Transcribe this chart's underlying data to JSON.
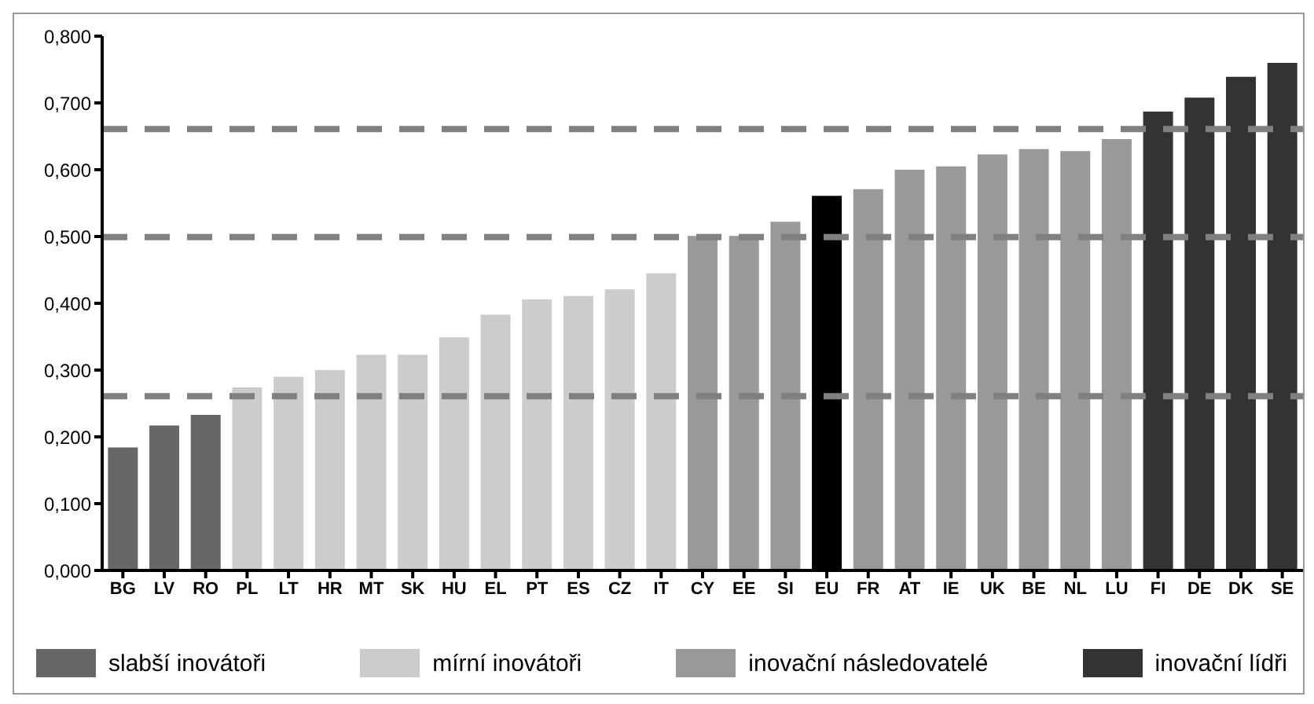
{
  "chart_data": {
    "type": "bar",
    "stacked": true,
    "categories": [
      "BG",
      "LV",
      "RO",
      "PL",
      "LT",
      "HR",
      "MT",
      "SK",
      "HU",
      "EL",
      "PT",
      "ES",
      "CZ",
      "IT",
      "CY",
      "EE",
      "SI",
      "EU",
      "FR",
      "AT",
      "IE",
      "UK",
      "BE",
      "NL",
      "LU",
      "FI",
      "DE",
      "DK",
      "SE"
    ],
    "series": [
      {
        "name": "slabší inovátoři",
        "color": "#666666",
        "values": [
          0.184,
          0.217,
          0.233,
          null,
          null,
          null,
          null,
          null,
          null,
          null,
          null,
          null,
          null,
          null,
          null,
          null,
          null,
          null,
          null,
          null,
          null,
          null,
          null,
          null,
          null,
          null,
          null,
          null,
          null
        ]
      },
      {
        "name": "mírní inovátoři",
        "color": "#cccccc",
        "values": [
          null,
          null,
          null,
          0.274,
          0.29,
          0.3,
          0.323,
          0.323,
          0.349,
          0.383,
          0.406,
          0.411,
          0.421,
          0.445,
          null,
          null,
          null,
          null,
          null,
          null,
          null,
          null,
          null,
          null,
          null,
          null,
          null,
          null,
          null
        ]
      },
      {
        "name": "inovační následovatelé",
        "color": "#999999",
        "values": [
          null,
          null,
          null,
          null,
          null,
          null,
          null,
          null,
          null,
          null,
          null,
          null,
          null,
          null,
          0.501,
          0.501,
          0.522,
          null,
          0.571,
          0.6,
          0.605,
          0.623,
          0.631,
          0.628,
          0.646,
          null,
          null,
          null,
          null
        ]
      },
      {
        "name": "inovační lídři",
        "color": "#333333",
        "values": [
          null,
          null,
          null,
          null,
          null,
          null,
          null,
          null,
          null,
          null,
          null,
          null,
          null,
          null,
          null,
          null,
          null,
          null,
          null,
          null,
          null,
          null,
          null,
          null,
          null,
          0.687,
          0.708,
          0.739,
          0.76
        ]
      },
      {
        "color": "#000000",
        "values": [
          null,
          null,
          null,
          null,
          null,
          null,
          null,
          null,
          null,
          null,
          null,
          null,
          null,
          null,
          null,
          null,
          null,
          0.561,
          null,
          null,
          null,
          null,
          null,
          null,
          null,
          null,
          null,
          null,
          null
        ]
      }
    ],
    "ylim": [
      0,
      0.8
    ],
    "yticks": [
      {
        "value": 0,
        "label": "0,000"
      },
      {
        "value": 0.1,
        "label": "0,100"
      },
      {
        "value": 0.2,
        "label": "0,200"
      },
      {
        "value": 0.3,
        "label": "0,300"
      },
      {
        "value": 0.4,
        "label": "0,400"
      },
      {
        "value": 0.5,
        "label": "0,500"
      },
      {
        "value": 0.6,
        "label": "0,600"
      },
      {
        "value": 0.7,
        "label": "0,700"
      },
      {
        "value": 0.8,
        "label": "0,800"
      }
    ],
    "ref_lines": [
      {
        "axis": "y",
        "value": 0.661,
        "color": "#808080",
        "line_style": "dashed"
      },
      {
        "axis": "y",
        "value": 0.499,
        "color": "#808080",
        "line_style": "dashed"
      },
      {
        "axis": "y",
        "value": 0.261,
        "color": "#808080",
        "line_style": "dashed"
      }
    ],
    "grid": false,
    "legend": "bottom"
  }
}
